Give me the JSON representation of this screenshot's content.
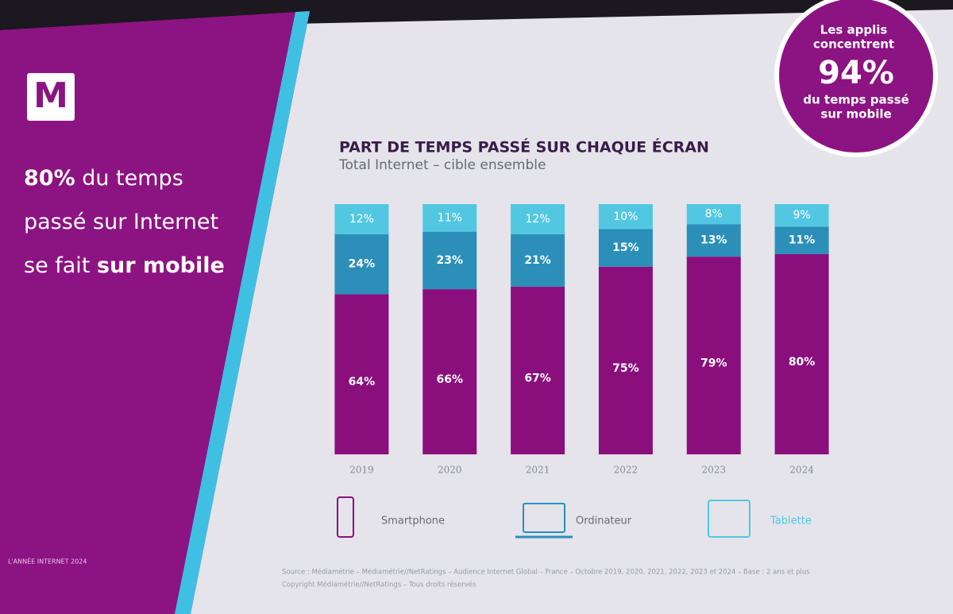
{
  "slide": {
    "logo": "M",
    "headline": [
      [
        {
          "text": "80%",
          "bold": true
        },
        {
          "text": " du temps",
          "bold": false
        }
      ],
      [
        {
          "text": "passé sur Internet",
          "bold": false
        }
      ],
      [
        {
          "text": "se fait ",
          "bold": false
        },
        {
          "text": "sur mobile",
          "bold": true
        }
      ]
    ],
    "footer": "L'ANNÉE INTERNET 2024",
    "callout": {
      "top": [
        "Les applis",
        "concentrent"
      ],
      "figure": "94%",
      "bottom": [
        "du temps passé",
        "sur mobile"
      ]
    },
    "source": [
      "Source : Médiamétrie – Médiamétrie//NetRatings – Audience Internet Global – France – Octobre 2019, 2020, 2021, 2022, 2023 et 2024 – Base : 2 ans et plus",
      "Copyright Médiamétrie//NetRatings – Tous droits réservés"
    ]
  },
  "chart_data": {
    "type": "stacked-bar",
    "title": "PART DE TEMPS PASSÉ SUR CHAQUE ÉCRAN",
    "subtitle": "Total Internet – cible ensemble",
    "categories": [
      "2019",
      "2020",
      "2021",
      "2022",
      "2023",
      "2024"
    ],
    "series": [
      {
        "name": "Smartphone",
        "color": "#8a0f7c",
        "values": [
          64,
          66,
          67,
          75,
          79,
          80
        ],
        "value_labels": [
          "64%",
          "66%",
          "67%",
          "75%",
          "79%",
          "80%"
        ]
      },
      {
        "name": "Ordinateur",
        "color": "#2b8fba",
        "values": [
          24,
          23,
          21,
          15,
          13,
          11
        ],
        "value_labels": [
          "24%",
          "23%",
          "21%",
          "15%",
          "13%",
          "11%"
        ]
      },
      {
        "name": "Tablette",
        "color": "#52c7e2",
        "values": [
          12,
          11,
          12,
          10,
          8,
          9
        ],
        "value_labels": [
          "12%",
          "11%",
          "12%",
          "10%",
          "8%",
          "9%"
        ]
      }
    ]
  }
}
